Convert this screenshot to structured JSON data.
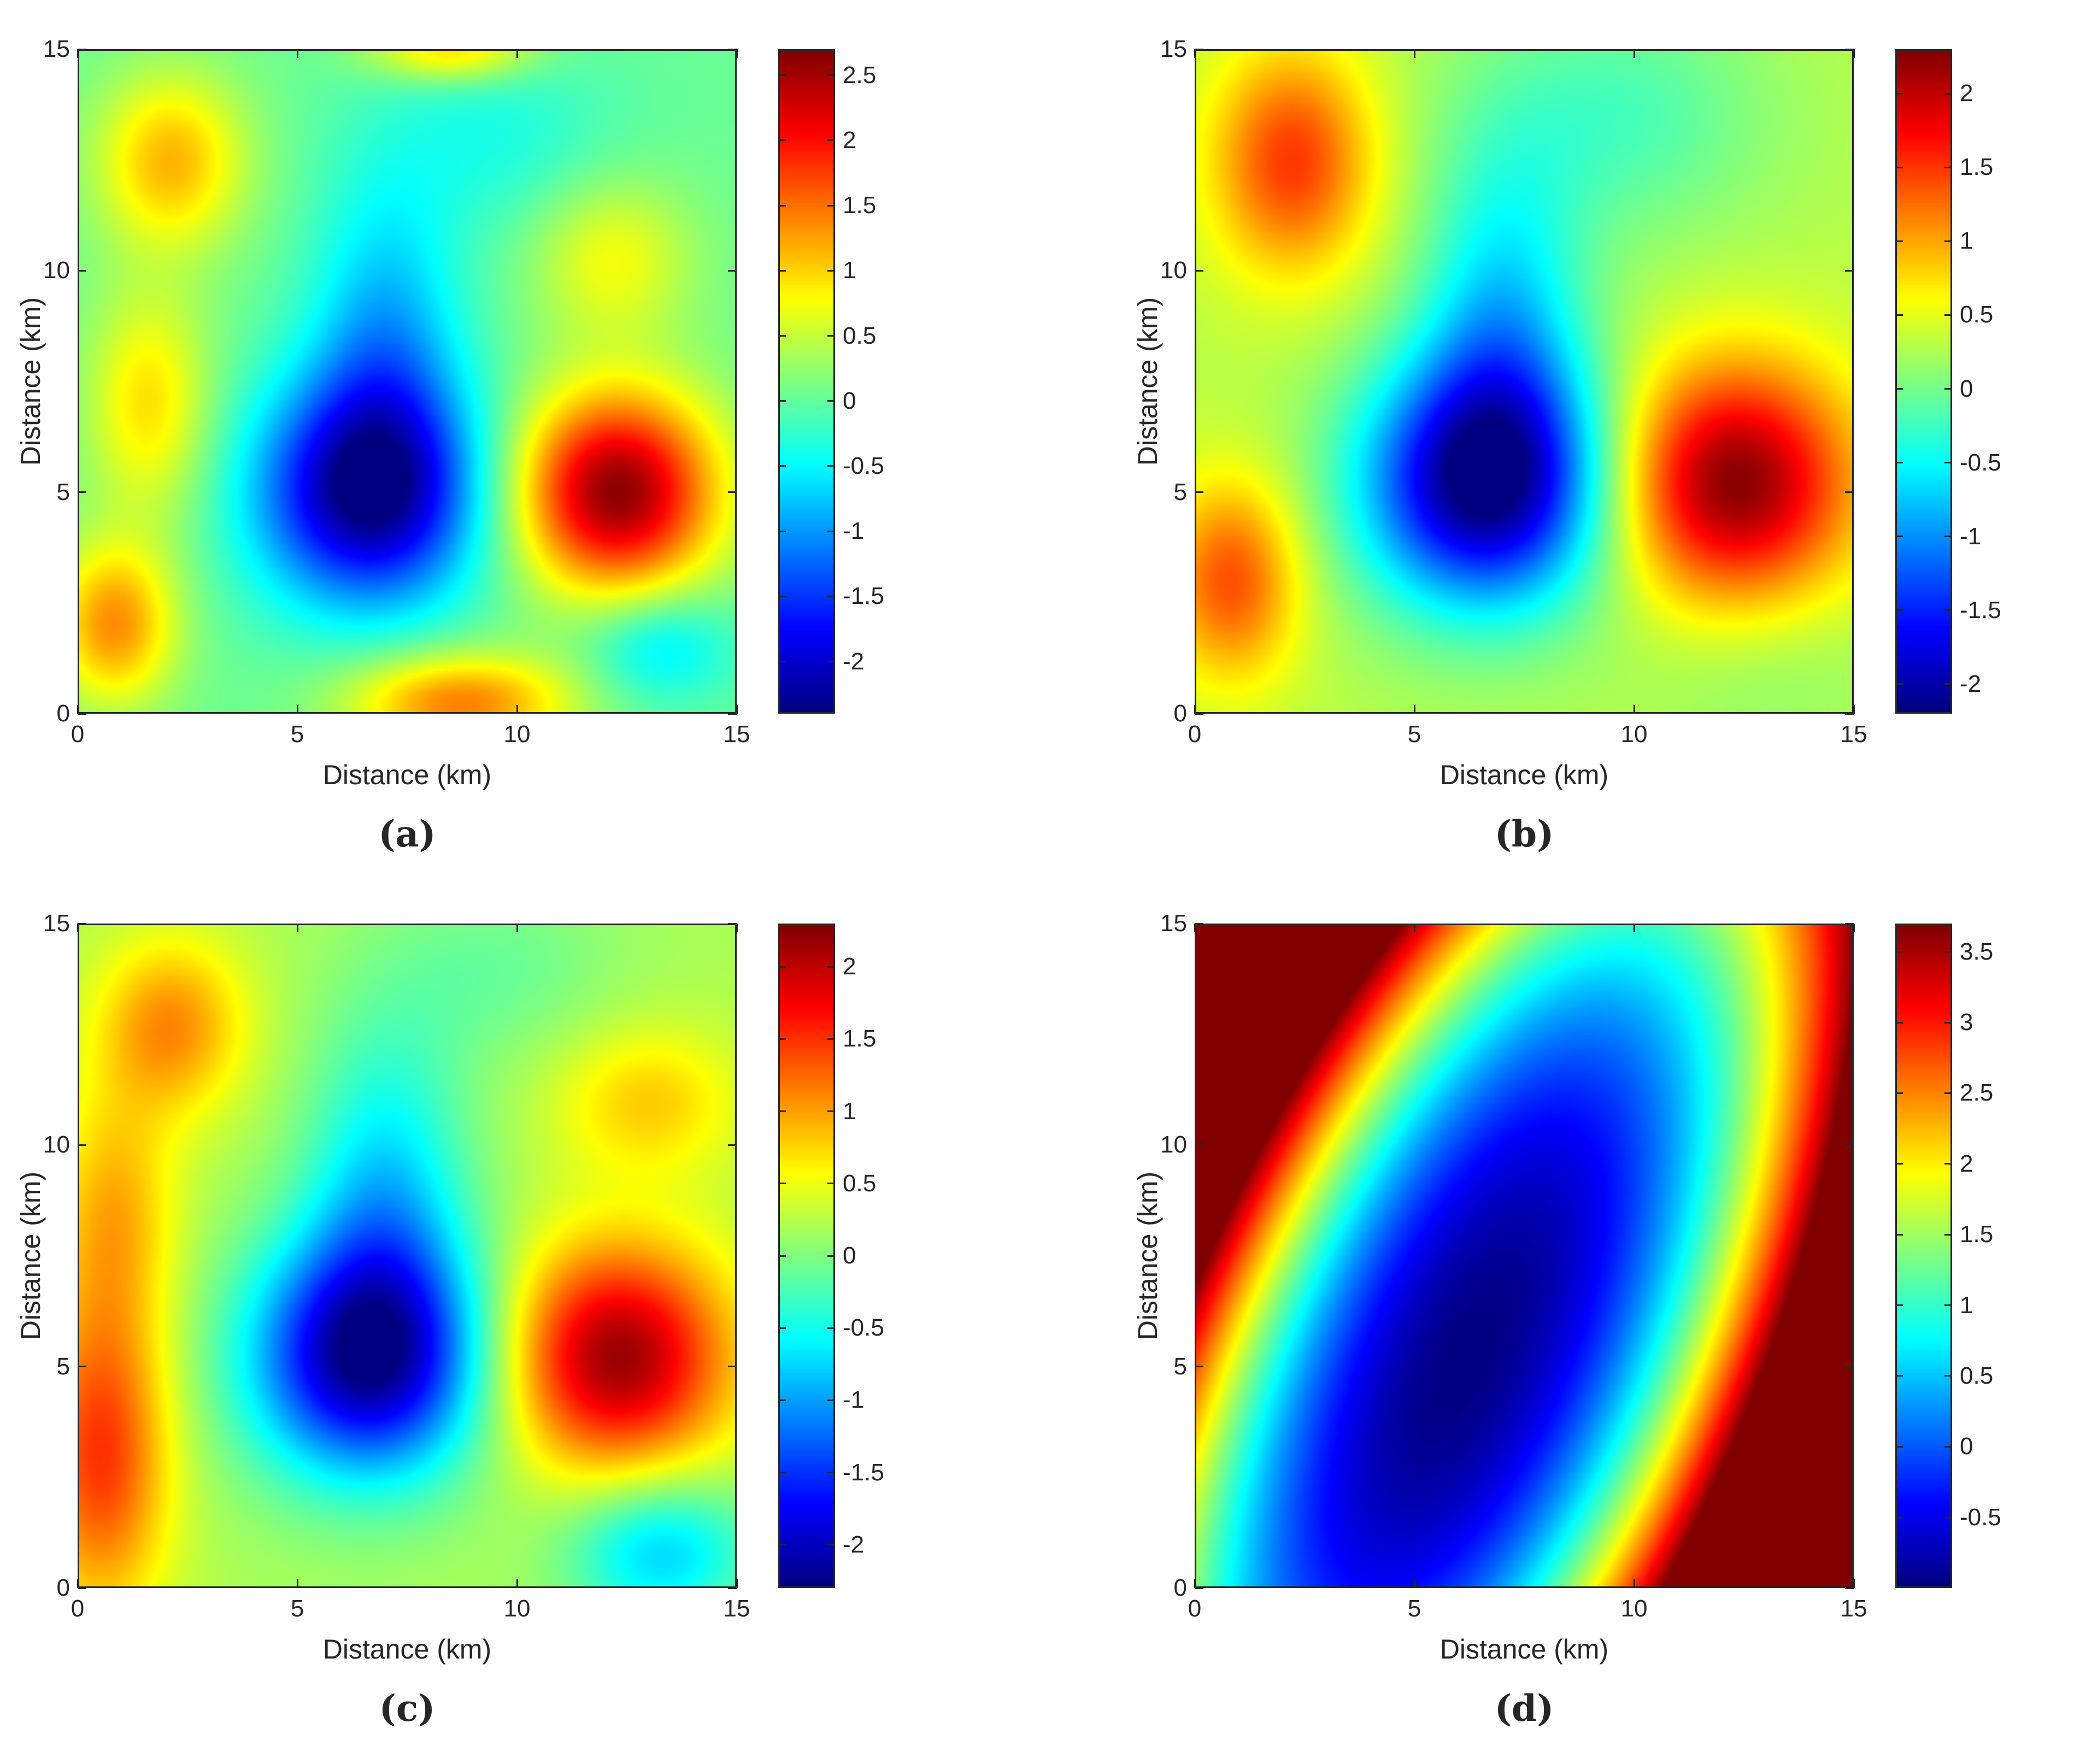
{
  "chart_data": [
    {
      "panel": "a",
      "type": "heatmap",
      "caption": "(a)",
      "xlabel": "Distance (km)",
      "ylabel": "Distance (km)",
      "xlim": [
        0,
        15
      ],
      "ylim": [
        0,
        15
      ],
      "xticks": [
        "0",
        "5",
        "10",
        "15"
      ],
      "yticks": [
        "0",
        "5",
        "10",
        "15"
      ],
      "colormap": "jet",
      "clim": [
        -2.4,
        2.7
      ],
      "cbar_ticks": [
        -2,
        -1.5,
        -1,
        -0.5,
        0,
        0.5,
        1,
        1.5,
        2,
        2.5
      ],
      "cbar_ticklabels": [
        "-2",
        "-1.5",
        "-1",
        "-0.5",
        "0",
        "0.5",
        "1",
        "1.5",
        "2",
        "2.5"
      ],
      "background": 0.05,
      "features": [
        {
          "x": 6.6,
          "y": 5.0,
          "amplitude": -2.4,
          "sx": 1.8,
          "sy": 1.8
        },
        {
          "x": 7.0,
          "y": 8.5,
          "amplitude": -0.9,
          "sx": 1.2,
          "sy": 2.5
        },
        {
          "x": 12.3,
          "y": 5.0,
          "amplitude": 2.6,
          "sx": 1.6,
          "sy": 1.6
        },
        {
          "x": 2.1,
          "y": 12.5,
          "amplitude": 1.1,
          "sx": 1.2,
          "sy": 1.4
        },
        {
          "x": 1.6,
          "y": 7.0,
          "amplitude": 0.9,
          "sx": 1.0,
          "sy": 1.8
        },
        {
          "x": 0.8,
          "y": 2.0,
          "amplitude": 1.3,
          "sx": 1.0,
          "sy": 1.3
        },
        {
          "x": 8.7,
          "y": 0.2,
          "amplitude": 1.4,
          "sx": 1.8,
          "sy": 0.8
        },
        {
          "x": 8.5,
          "y": 15.0,
          "amplitude": 1.0,
          "sx": 1.3,
          "sy": 0.5
        },
        {
          "x": 12.2,
          "y": 10.3,
          "amplitude": 0.7,
          "sx": 1.3,
          "sy": 1.3
        },
        {
          "x": 13.3,
          "y": 1.5,
          "amplitude": -0.7,
          "sx": 1.2,
          "sy": 0.9
        },
        {
          "x": 9.5,
          "y": 13.0,
          "amplitude": -0.4,
          "sx": 2.0,
          "sy": 1.5
        }
      ]
    },
    {
      "panel": "b",
      "type": "heatmap",
      "caption": "(b)",
      "xlabel": "Distance (km)",
      "ylabel": "Distance (km)",
      "xlim": [
        0,
        15
      ],
      "ylim": [
        0,
        15
      ],
      "xticks": [
        "0",
        "5",
        "10",
        "15"
      ],
      "yticks": [
        "0",
        "5",
        "10",
        "15"
      ],
      "colormap": "jet",
      "clim": [
        -2.2,
        2.3
      ],
      "cbar_ticks": [
        -2,
        -1.5,
        -1,
        -0.5,
        0,
        0.5,
        1,
        1.5,
        2
      ],
      "cbar_ticklabels": [
        "-2",
        "-1.5",
        "-1",
        "-0.5",
        "0",
        "0.5",
        "1",
        "1.5",
        "2"
      ],
      "background": 0.3,
      "features": [
        {
          "x": 6.6,
          "y": 5.2,
          "amplitude": -2.5,
          "sx": 2.0,
          "sy": 2.0
        },
        {
          "x": 7.0,
          "y": 9.0,
          "amplitude": -0.9,
          "sx": 1.3,
          "sy": 2.6
        },
        {
          "x": 12.3,
          "y": 5.2,
          "amplitude": 2.0,
          "sx": 1.9,
          "sy": 1.9
        },
        {
          "x": 2.2,
          "y": 12.5,
          "amplitude": 1.2,
          "sx": 1.3,
          "sy": 1.8
        },
        {
          "x": 0.8,
          "y": 3.0,
          "amplitude": 1.1,
          "sx": 1.1,
          "sy": 1.6
        },
        {
          "x": 9.5,
          "y": 13.5,
          "amplitude": -0.5,
          "sx": 2.5,
          "sy": 2.0
        },
        {
          "x": 13.0,
          "y": 1.0,
          "amplitude": -0.2,
          "sx": 2.0,
          "sy": 1.5
        }
      ]
    },
    {
      "panel": "c",
      "type": "heatmap",
      "caption": "(c)",
      "xlabel": "Distance (km)",
      "ylabel": "Distance (km)",
      "xlim": [
        0,
        15
      ],
      "ylim": [
        0,
        15
      ],
      "xticks": [
        "0",
        "5",
        "10",
        "15"
      ],
      "yticks": [
        "0",
        "5",
        "10",
        "15"
      ],
      "colormap": "jet",
      "clim": [
        -2.3,
        2.3
      ],
      "cbar_ticks": [
        -2,
        -1.5,
        -1,
        -0.5,
        0,
        0.5,
        1,
        1.5,
        2
      ],
      "cbar_ticklabels": [
        "-2",
        "-1.5",
        "-1",
        "-0.5",
        "0",
        "0.5",
        "1",
        "1.5",
        "2"
      ],
      "background": 0.2,
      "features": [
        {
          "x": 6.6,
          "y": 5.2,
          "amplitude": -2.4,
          "sx": 1.9,
          "sy": 1.9
        },
        {
          "x": 7.0,
          "y": 9.0,
          "amplitude": -0.9,
          "sx": 1.3,
          "sy": 2.6
        },
        {
          "x": 12.3,
          "y": 5.2,
          "amplitude": 2.0,
          "sx": 1.8,
          "sy": 1.8
        },
        {
          "x": 2.1,
          "y": 12.7,
          "amplitude": 0.9,
          "sx": 1.2,
          "sy": 1.4
        },
        {
          "x": 0.5,
          "y": 3.0,
          "amplitude": 1.3,
          "sx": 1.1,
          "sy": 2.5
        },
        {
          "x": 0.8,
          "y": 8.5,
          "amplitude": 0.7,
          "sx": 1.0,
          "sy": 2.0
        },
        {
          "x": 13.0,
          "y": 11.0,
          "amplitude": 0.6,
          "sx": 1.5,
          "sy": 1.2
        },
        {
          "x": 13.3,
          "y": 0.8,
          "amplitude": -1.0,
          "sx": 1.5,
          "sy": 1.2
        },
        {
          "x": 9.5,
          "y": 14.0,
          "amplitude": -0.3,
          "sx": 2.0,
          "sy": 1.5
        }
      ]
    },
    {
      "panel": "d",
      "type": "heatmap",
      "caption": "(d)",
      "xlabel": "Distance (km)",
      "ylabel": "Distance (km)",
      "xlim": [
        0,
        15
      ],
      "ylim": [
        0,
        15
      ],
      "xticks": [
        "0",
        "5",
        "10",
        "15"
      ],
      "yticks": [
        "0",
        "5",
        "10",
        "15"
      ],
      "colormap": "jet",
      "clim": [
        -1.0,
        3.7
      ],
      "cbar_ticks": [
        -0.5,
        0,
        0.5,
        1,
        1.5,
        2,
        2.5,
        3,
        3.5
      ],
      "cbar_ticklabels": [
        "-0.5",
        "0",
        "0.5",
        "1",
        "1.5",
        "2",
        "2.5",
        "3",
        "3.5"
      ],
      "background": 0,
      "field_form": "quadratic",
      "center": [
        6.2,
        5.2
      ],
      "min_value": -1.0,
      "quadratic_terms": {
        "xx": 0.1,
        "yy": 0.035,
        "xy": -0.075
      }
    }
  ]
}
